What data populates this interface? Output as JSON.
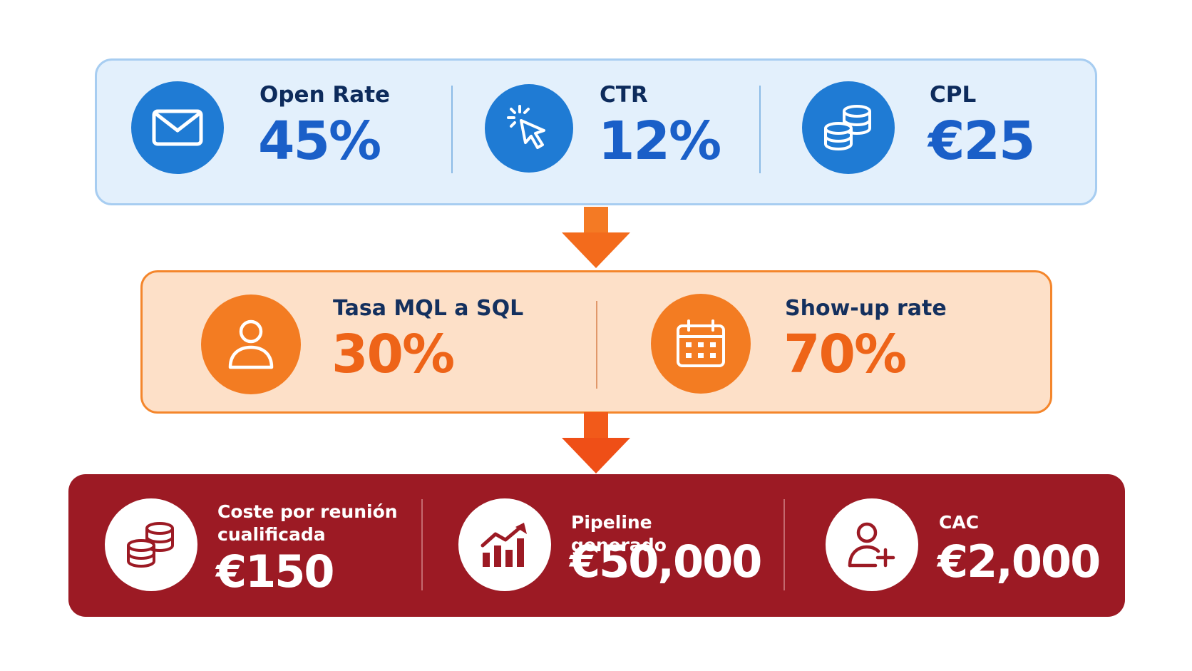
{
  "stages": {
    "top": {
      "metrics": [
        {
          "icon": "envelope-icon",
          "label": "Open Rate",
          "value": "45%"
        },
        {
          "icon": "cursor-click-icon",
          "label": "CTR",
          "value": "12%"
        },
        {
          "icon": "coins-stack-icon",
          "label": "CPL",
          "value": "€25"
        }
      ]
    },
    "middle": {
      "metrics": [
        {
          "icon": "user-icon",
          "label": "Tasa MQL a SQL",
          "value": "30%"
        },
        {
          "icon": "calendar-icon",
          "label": "Show-up rate",
          "value": "70%"
        }
      ]
    },
    "bottom": {
      "metrics": [
        {
          "icon": "coins-stack-icon",
          "label": "Coste por reunión cualificada",
          "value": "€150"
        },
        {
          "icon": "growth-chart-icon",
          "label": "Pipeline generado",
          "value": "€50,000"
        },
        {
          "icon": "user-add-icon",
          "label": "CAC",
          "value": "€2,000"
        }
      ]
    }
  },
  "colors": {
    "top_fill": "#e3f0fc",
    "top_accent": "#1f7bd4",
    "middle_fill": "#fde0c8",
    "middle_accent": "#f37c22",
    "bottom_fill": "#9c1a24",
    "arrow": "#f36b1c"
  }
}
